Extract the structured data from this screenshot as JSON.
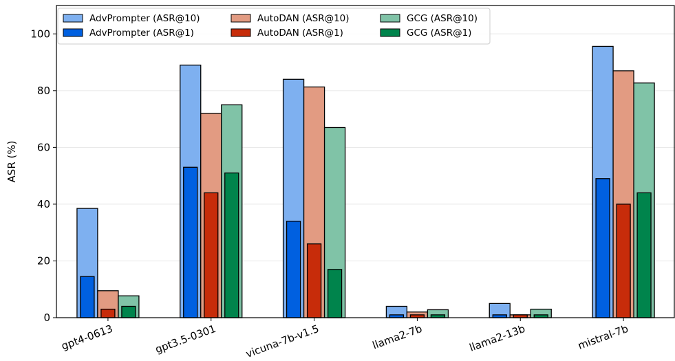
{
  "chart_data": {
    "type": "bar",
    "ylabel": "ASR (%)",
    "ylim": [
      0,
      110
    ],
    "yticks": [
      "0",
      "20",
      "40",
      "60",
      "80",
      "100"
    ],
    "grid": "horizontal",
    "legend_position": "top-left",
    "categories": [
      "gpt4-0613",
      "gpt3.5-0301",
      "vicuna-7b-v1.5",
      "llama2-7b",
      "llama2-13b",
      "mistral-7b"
    ],
    "series": [
      {
        "name": "AdvPrompter (ASR@10)",
        "method": 0,
        "kind": "asr10",
        "color": "#7eb0f0",
        "values": [
          38.5,
          89.0,
          84.0,
          4.0,
          5.0,
          95.6
        ]
      },
      {
        "name": "AdvPrompter (ASR@1)",
        "method": 0,
        "kind": "asr1",
        "color": "#0060e0",
        "values": [
          14.5,
          53.0,
          34.0,
          1.0,
          1.0,
          49.0
        ]
      },
      {
        "name": "AutoDAN (ASR@10)",
        "method": 1,
        "kind": "asr10",
        "color": "#e29b82",
        "values": [
          9.5,
          72.0,
          81.3,
          2.0,
          1.0,
          87.0
        ]
      },
      {
        "name": "AutoDAN (ASR@1)",
        "method": 1,
        "kind": "asr1",
        "color": "#c72c0a",
        "values": [
          3.0,
          44.0,
          26.0,
          1.0,
          1.0,
          40.0
        ]
      },
      {
        "name": "GCG (ASR@10)",
        "method": 2,
        "kind": "asr10",
        "color": "#80c3a7",
        "values": [
          7.7,
          75.0,
          67.0,
          2.8,
          3.0,
          82.7
        ]
      },
      {
        "name": "GCG (ASR@1)",
        "method": 2,
        "kind": "asr1",
        "color": "#00844c",
        "values": [
          4.0,
          51.0,
          17.0,
          1.0,
          1.0,
          44.0
        ]
      }
    ]
  }
}
